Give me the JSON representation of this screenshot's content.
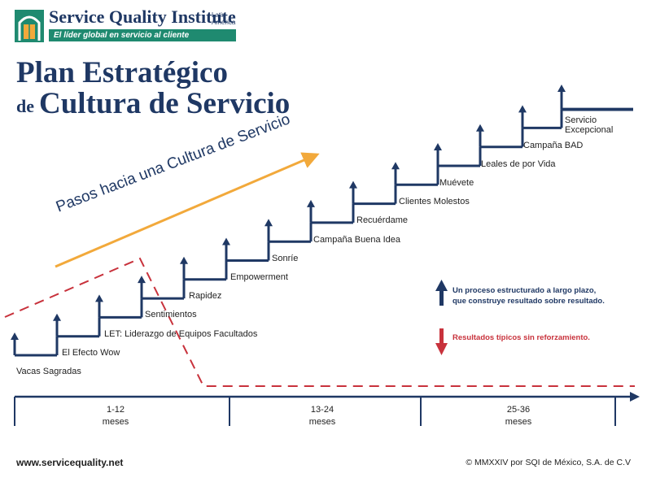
{
  "header": {
    "org_name": "Service Quality Institute",
    "org_region": "Latin America",
    "tagline": "El líder global en servicio al cliente"
  },
  "title": {
    "line1": "Plan Estratégico",
    "line2_prefix": "de",
    "line2": "Cultura de Servicio"
  },
  "diagonal_label": "Pasos hacia una Cultura de Servicio",
  "steps": [
    "Vacas Sagradas",
    "El Efecto Wow",
    "LET: Liderazgo de Equipos Facultados",
    "Sentimientos",
    "Rapidez",
    "Empowerment",
    "Sonríe",
    "Campaña Buena Idea",
    "Recuérdame",
    "Clientes Molestos",
    "Muévete",
    "Leales de por Vida",
    "Campaña BAD",
    "Servicio",
    "Excepcional"
  ],
  "legend": {
    "up_line1": "Un proceso estructurado a largo plazo,",
    "up_line2": "que construye resultado sobre resultado.",
    "down": "Resultados típicos sin reforzamiento."
  },
  "timeline": [
    {
      "range": "1-12",
      "unit": "meses"
    },
    {
      "range": "13-24",
      "unit": "meses"
    },
    {
      "range": "25-36",
      "unit": "meses"
    }
  ],
  "footer": {
    "website": "www.servicequality.net",
    "copyright": "© MMXXIV por SQI de México, S.A. de C.V"
  },
  "colors": {
    "navy": "#1f3864",
    "teal": "#1f8a70",
    "red": "#c8323c",
    "orange": "#f2a93b"
  }
}
